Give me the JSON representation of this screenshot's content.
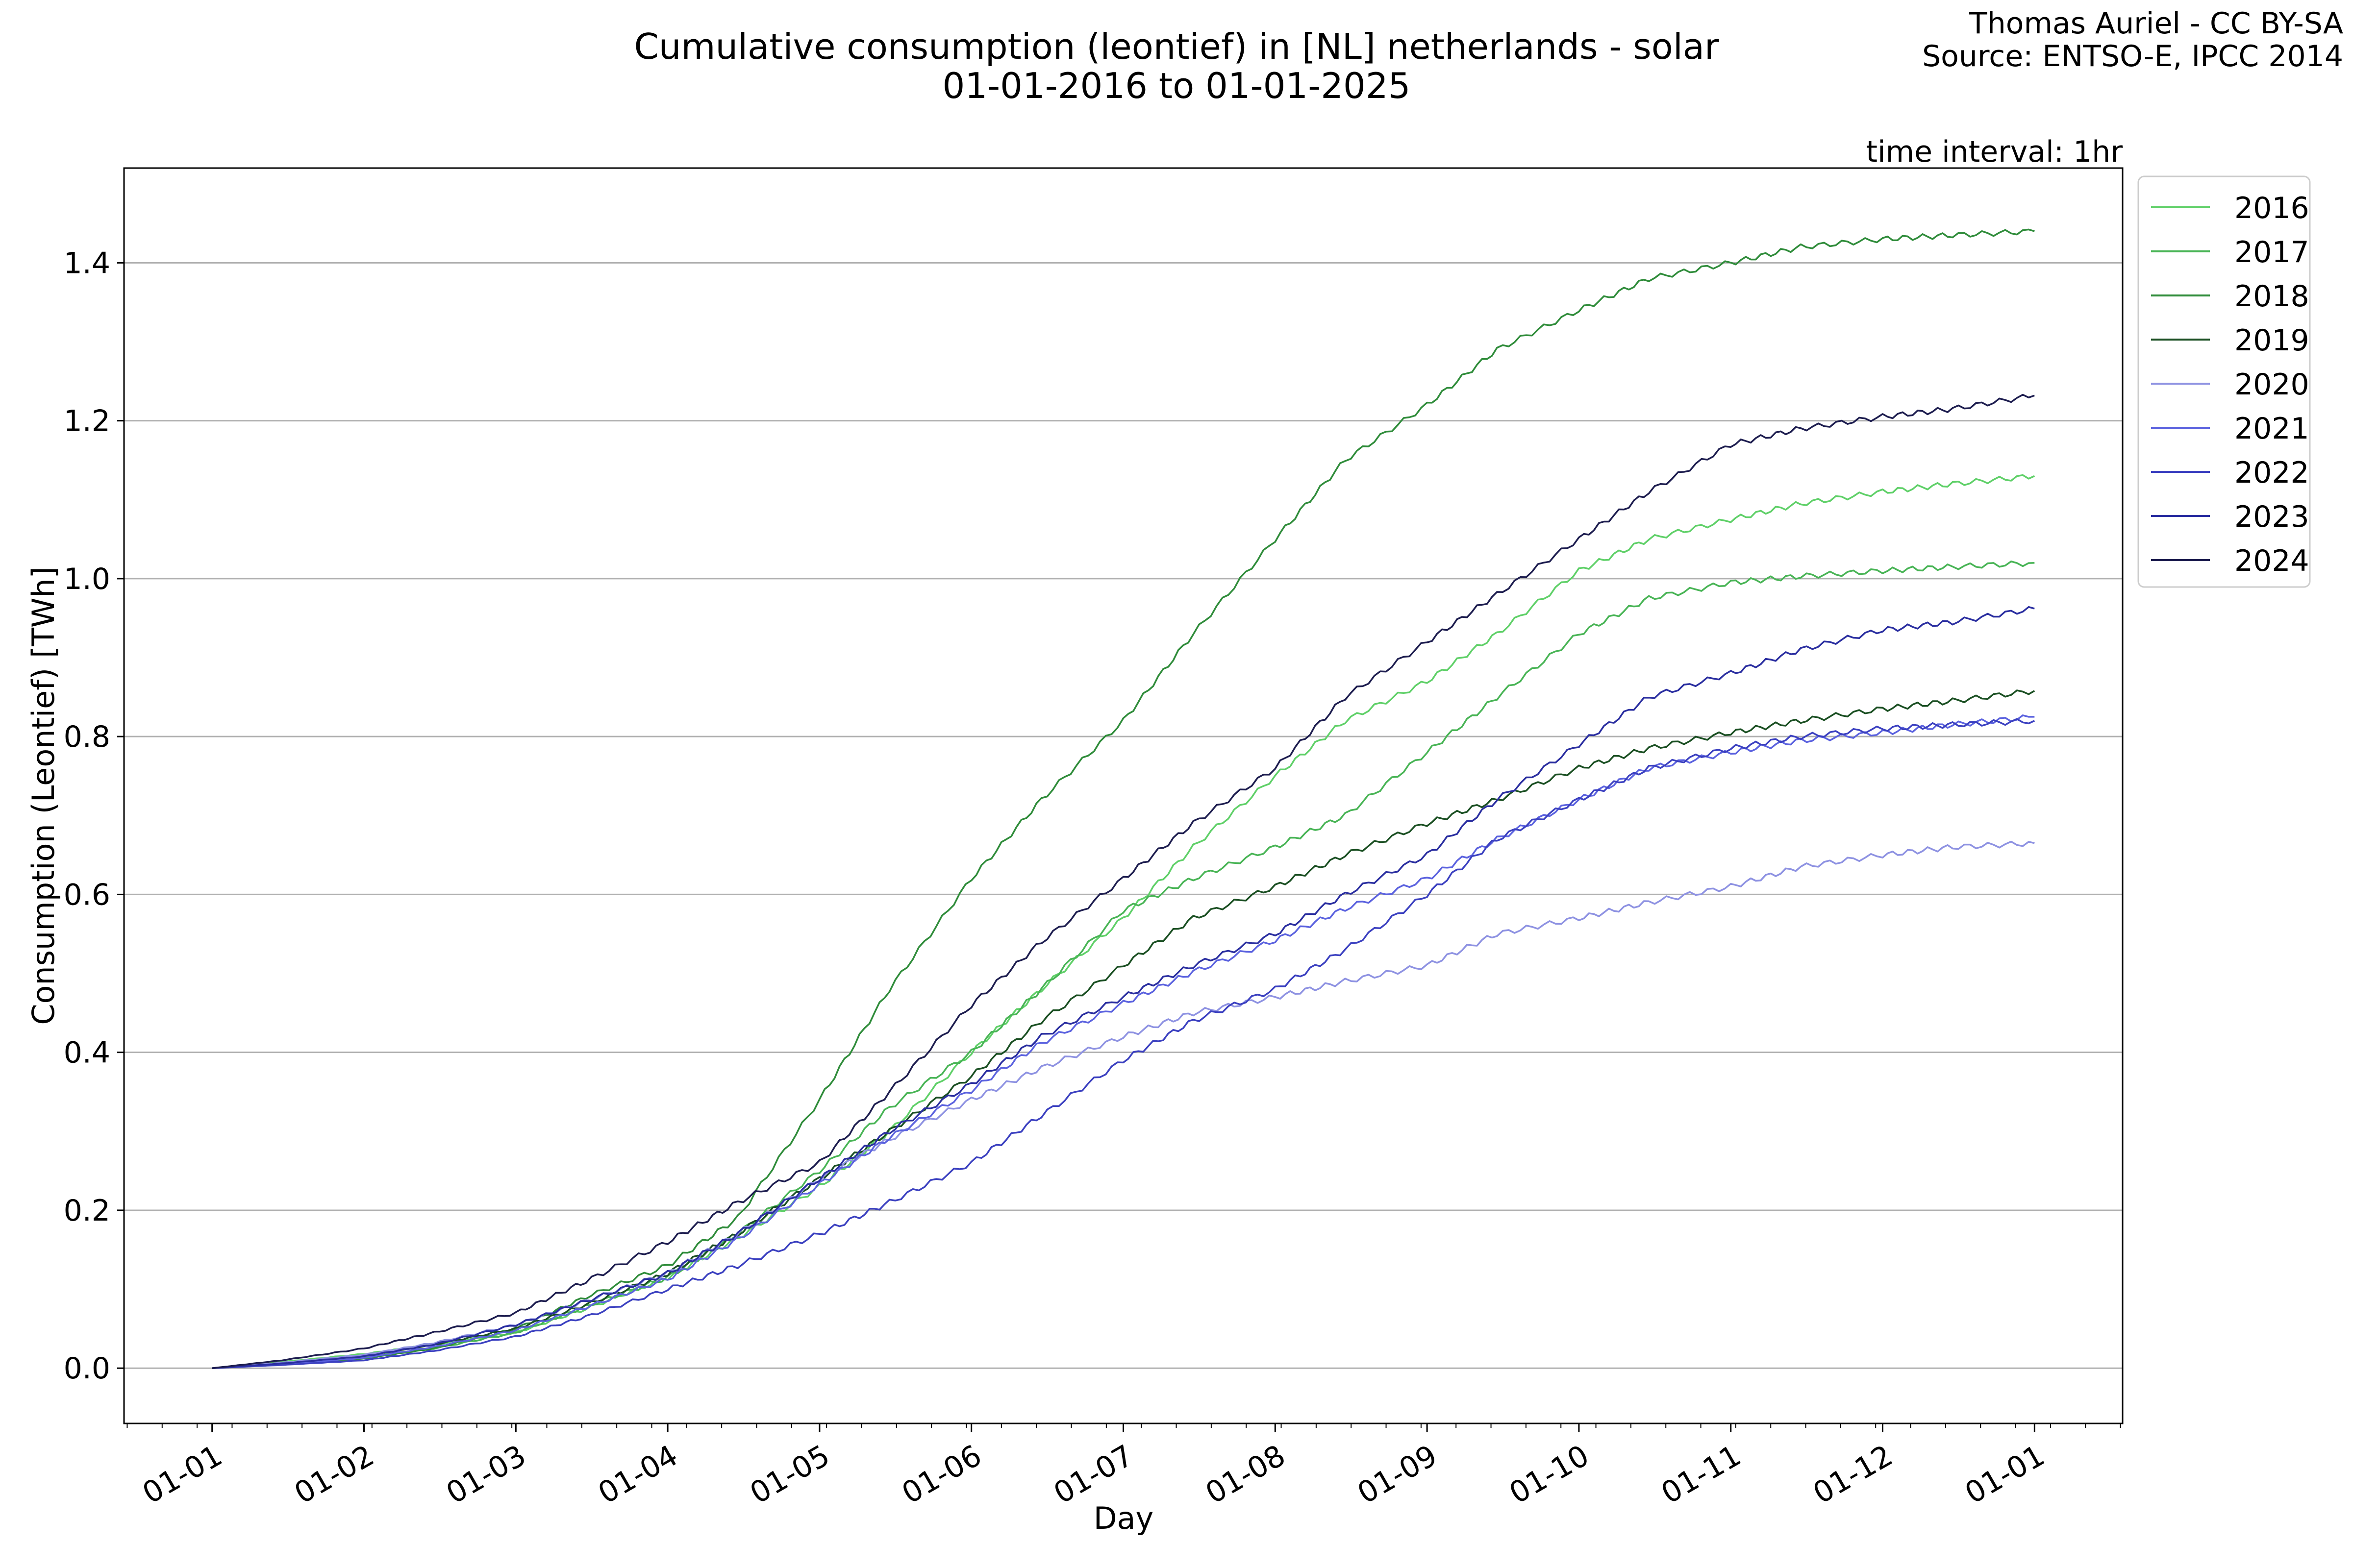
{
  "header": {
    "title_line1": "Cumulative consumption (leontief) in [NL] netherlands - solar",
    "title_line2": "01-01-2016 to 01-01-2025",
    "credit_line1": "Thomas Auriel - CC BY-SA",
    "credit_line2": "Source: ENTSO-E, IPCC 2014",
    "interval": "time interval: 1hr"
  },
  "chart_data": {
    "type": "line",
    "title": "Cumulative consumption (leontief) in [NL] netherlands - solar",
    "subtitle": "01-01-2016 to 01-01-2025",
    "xlabel": "Day",
    "ylabel": "Consumption (Leontief) [TWh]",
    "x_ticks": [
      "01-01",
      "01-02",
      "01-03",
      "01-04",
      "01-05",
      "01-06",
      "01-07",
      "01-08",
      "01-09",
      "01-10",
      "01-11",
      "01-12",
      "01-01"
    ],
    "y_ticks": [
      "0.0",
      "0.2",
      "0.4",
      "0.6",
      "0.8",
      "1.0",
      "1.2",
      "1.4"
    ],
    "ylim": [
      -0.07,
      1.52
    ],
    "xlim_months": [
      -0.58,
      12.58
    ],
    "grid": "horizontal",
    "legend_position": "outside-right-top",
    "x_points": [
      "01-01",
      "15-01",
      "01-02",
      "15-02",
      "01-03",
      "15-03",
      "01-04",
      "15-04",
      "01-05",
      "15-05",
      "01-06",
      "15-06",
      "01-07",
      "15-07",
      "01-08",
      "15-08",
      "01-09",
      "15-09",
      "01-10",
      "15-10",
      "01-11",
      "15-11",
      "01-12",
      "15-12",
      "31-12"
    ],
    "series": [
      {
        "name": "2016",
        "color": "#5fd068",
        "values": [
          0,
          0.008,
          0.018,
          0.03,
          0.045,
          0.075,
          0.115,
          0.165,
          0.23,
          0.3,
          0.4,
          0.48,
          0.57,
          0.66,
          0.75,
          0.82,
          0.87,
          0.93,
          1.01,
          1.05,
          1.075,
          1.095,
          1.11,
          1.12,
          1.13
        ]
      },
      {
        "name": "2017",
        "color": "#48b455",
        "values": [
          0,
          0.006,
          0.014,
          0.025,
          0.045,
          0.078,
          0.115,
          0.17,
          0.25,
          0.33,
          0.4,
          0.48,
          0.58,
          0.62,
          0.66,
          0.7,
          0.78,
          0.85,
          0.93,
          0.975,
          0.995,
          1.003,
          1.01,
          1.015,
          1.02
        ]
      },
      {
        "name": "2018",
        "color": "#2f8c3a",
        "values": [
          0,
          0.005,
          0.012,
          0.025,
          0.05,
          0.09,
          0.13,
          0.19,
          0.34,
          0.48,
          0.62,
          0.72,
          0.82,
          0.93,
          1.05,
          1.15,
          1.22,
          1.29,
          1.34,
          1.38,
          1.4,
          1.42,
          1.43,
          1.435,
          1.44
        ]
      },
      {
        "name": "2019",
        "color": "#1a4f22",
        "values": [
          0,
          0.007,
          0.016,
          0.03,
          0.05,
          0.08,
          0.12,
          0.17,
          0.24,
          0.3,
          0.37,
          0.44,
          0.51,
          0.57,
          0.61,
          0.65,
          0.69,
          0.72,
          0.76,
          0.785,
          0.805,
          0.82,
          0.835,
          0.845,
          0.858
        ]
      },
      {
        "name": "2020",
        "color": "#8e92e2",
        "values": [
          0,
          0.007,
          0.017,
          0.032,
          0.055,
          0.085,
          0.12,
          0.17,
          0.24,
          0.29,
          0.34,
          0.38,
          0.42,
          0.45,
          0.47,
          0.49,
          0.51,
          0.55,
          0.57,
          0.59,
          0.61,
          0.635,
          0.65,
          0.66,
          0.665
        ]
      },
      {
        "name": "2021",
        "color": "#5b62df",
        "values": [
          0,
          0.005,
          0.013,
          0.027,
          0.048,
          0.077,
          0.113,
          0.163,
          0.233,
          0.292,
          0.352,
          0.412,
          0.462,
          0.502,
          0.542,
          0.582,
          0.62,
          0.67,
          0.72,
          0.76,
          0.78,
          0.795,
          0.805,
          0.815,
          0.825
        ]
      },
      {
        "name": "2022",
        "color": "#3b40c0",
        "values": [
          0,
          0.004,
          0.01,
          0.022,
          0.04,
          0.065,
          0.1,
          0.13,
          0.17,
          0.21,
          0.26,
          0.32,
          0.39,
          0.44,
          0.48,
          0.53,
          0.6,
          0.67,
          0.72,
          0.76,
          0.785,
          0.8,
          0.81,
          0.815,
          0.82
        ]
      },
      {
        "name": "2023",
        "color": "#2a2ea0",
        "values": [
          0,
          0.006,
          0.015,
          0.03,
          0.055,
          0.085,
          0.12,
          0.17,
          0.24,
          0.3,
          0.36,
          0.42,
          0.47,
          0.51,
          0.55,
          0.6,
          0.65,
          0.72,
          0.79,
          0.85,
          0.88,
          0.91,
          0.935,
          0.945,
          0.962
        ]
      },
      {
        "name": "2024",
        "color": "#1d1d4f",
        "values": [
          0,
          0.01,
          0.025,
          0.045,
          0.07,
          0.11,
          0.16,
          0.21,
          0.26,
          0.35,
          0.46,
          0.54,
          0.62,
          0.69,
          0.76,
          0.85,
          0.92,
          0.98,
          1.05,
          1.11,
          1.17,
          1.19,
          1.205,
          1.215,
          1.232
        ]
      }
    ]
  }
}
